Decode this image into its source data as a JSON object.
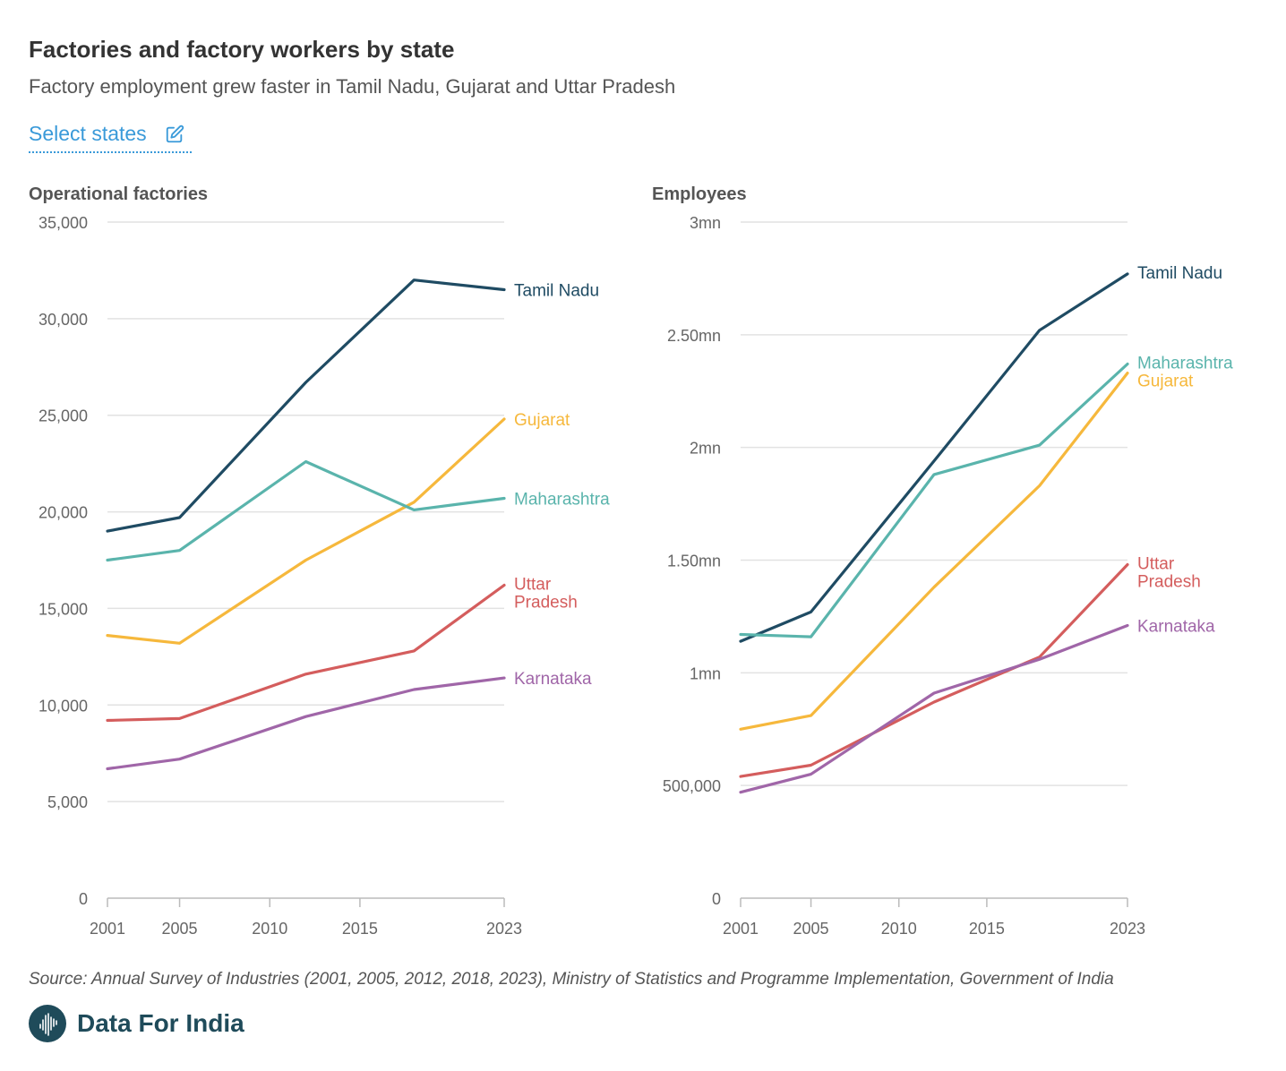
{
  "title": "Factories and factory workers by state",
  "subtitle": "Factory employment grew faster in Tamil Nadu, Gujarat and Uttar Pradesh",
  "select_label": "Select states",
  "source": "Source: Annual Survey of Industries (2001, 2005, 2012, 2018, 2023), Ministry of Statistics and Programme Implementation, Government of India",
  "brand": "Data For India",
  "colors": {
    "Tamil Nadu": "#1f4b63",
    "Maharashtra": "#5ab4ac",
    "Gujarat": "#f6b83c",
    "Uttar Pradesh": "#d45d5d",
    "Karnataka": "#a066a8",
    "link": "#3a9ad9"
  },
  "chart_data": [
    {
      "type": "line",
      "title": "Operational factories",
      "x": [
        2001,
        2005,
        2012,
        2018,
        2023
      ],
      "xticks": [
        "2001",
        "2005",
        "2010",
        "2015",
        "2023"
      ],
      "xtick_values": [
        2001,
        2005,
        2010,
        2015,
        2023
      ],
      "ylim": [
        0,
        35000
      ],
      "yticks": [
        "0",
        "5,000",
        "10,000",
        "15,000",
        "20,000",
        "25,000",
        "30,000",
        "35,000"
      ],
      "ytick_values": [
        0,
        5000,
        10000,
        15000,
        20000,
        25000,
        30000,
        35000
      ],
      "series": [
        {
          "name": "Tamil Nadu",
          "label": [
            "Tamil Nadu"
          ],
          "values": [
            19000,
            19700,
            26700,
            32000,
            31500
          ]
        },
        {
          "name": "Gujarat",
          "label": [
            "Gujarat"
          ],
          "values": [
            13600,
            13200,
            17500,
            20500,
            24800
          ]
        },
        {
          "name": "Maharashtra",
          "label": [
            "Maharashtra"
          ],
          "values": [
            17500,
            18000,
            22600,
            20100,
            20700
          ]
        },
        {
          "name": "Uttar Pradesh",
          "label": [
            "Uttar",
            "Pradesh"
          ],
          "values": [
            9200,
            9300,
            11600,
            12800,
            16200
          ]
        },
        {
          "name": "Karnataka",
          "label": [
            "Karnataka"
          ],
          "values": [
            6700,
            7200,
            9400,
            10800,
            11400
          ]
        }
      ]
    },
    {
      "type": "line",
      "title": "Employees",
      "x": [
        2001,
        2005,
        2012,
        2018,
        2023
      ],
      "xticks": [
        "2001",
        "2005",
        "2010",
        "2015",
        "2023"
      ],
      "xtick_values": [
        2001,
        2005,
        2010,
        2015,
        2023
      ],
      "ylim": [
        0,
        3000000
      ],
      "yticks": [
        "0",
        "500,000",
        "1mn",
        "1.50mn",
        "2mn",
        "2.50mn",
        "3mn"
      ],
      "ytick_values": [
        0,
        500000,
        1000000,
        1500000,
        2000000,
        2500000,
        3000000
      ],
      "series": [
        {
          "name": "Tamil Nadu",
          "label": [
            "Tamil Nadu"
          ],
          "values": [
            1140000,
            1270000,
            1940000,
            2520000,
            2770000
          ]
        },
        {
          "name": "Maharashtra",
          "label": [
            "Maharashtra"
          ],
          "values": [
            1170000,
            1160000,
            1880000,
            2010000,
            2370000
          ]
        },
        {
          "name": "Gujarat",
          "label": [
            "Gujarat"
          ],
          "values": [
            750000,
            810000,
            1380000,
            1830000,
            2330000
          ]
        },
        {
          "name": "Uttar Pradesh",
          "label": [
            "Uttar",
            "Pradesh"
          ],
          "values": [
            540000,
            590000,
            870000,
            1070000,
            1480000
          ]
        },
        {
          "name": "Karnataka",
          "label": [
            "Karnataka"
          ],
          "values": [
            470000,
            550000,
            910000,
            1060000,
            1210000
          ]
        }
      ]
    }
  ]
}
